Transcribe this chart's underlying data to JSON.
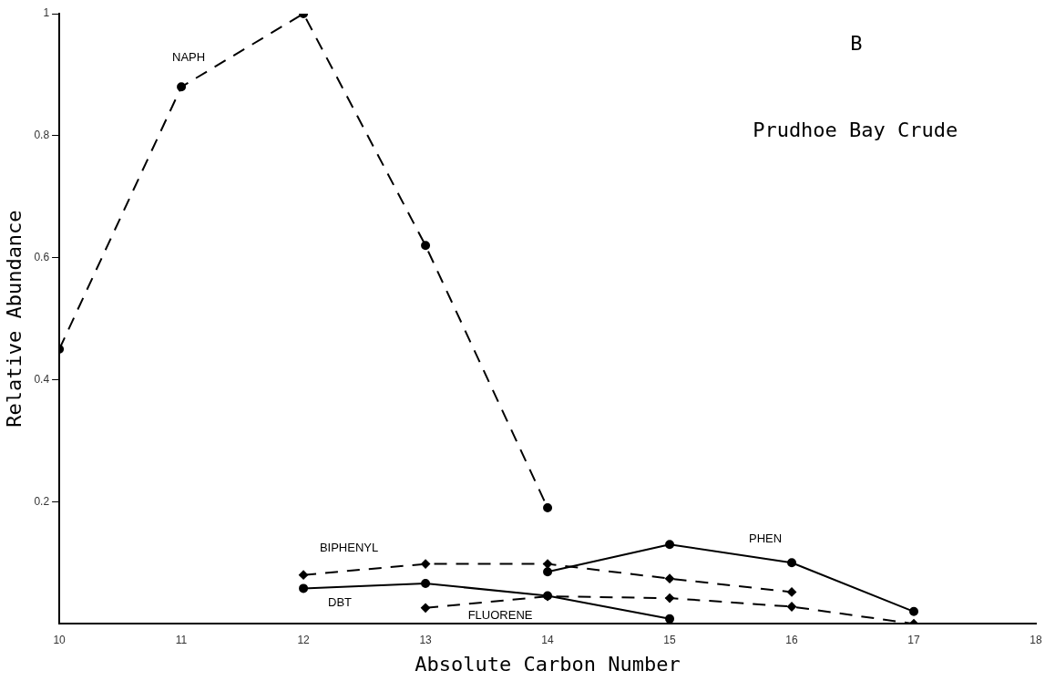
{
  "chart_data": {
    "type": "line",
    "xlabel": "Absolute Carbon Number",
    "ylabel": "Relative Abundance",
    "xlim": [
      10,
      18
    ],
    "xticks": [
      10,
      11,
      12,
      13,
      14,
      15,
      16,
      17,
      18
    ],
    "ylim": [
      0,
      1.0
    ],
    "yticks": [
      0.2,
      0.4,
      0.6,
      0.8,
      1.0
    ],
    "grid": false,
    "legend": false,
    "series": [
      {
        "name": "NAPH",
        "color": "#000000",
        "line_style": "dashed",
        "marker": "circle",
        "x": [
          10,
          11,
          12,
          13,
          14
        ],
        "values": [
          0.45,
          0.88,
          1.0,
          0.62,
          0.19
        ]
      },
      {
        "name": "BIPHENYL",
        "color": "#000000",
        "line_style": "dashed",
        "marker": "diamond",
        "x": [
          12,
          13,
          14,
          15,
          16
        ],
        "values": [
          0.08,
          0.098,
          0.098,
          0.074,
          0.052
        ]
      },
      {
        "name": "FLUORENE",
        "color": "#000000",
        "line_style": "dashed",
        "marker": "diamond",
        "x": [
          13,
          14,
          15,
          16,
          17
        ],
        "values": [
          0.026,
          0.045,
          0.042,
          0.028,
          0.0
        ]
      },
      {
        "name": "PHEN",
        "color": "#000000",
        "line_style": "solid",
        "marker": "circle",
        "x": [
          14,
          15,
          16,
          17
        ],
        "values": [
          0.085,
          0.13,
          0.1,
          0.02
        ]
      },
      {
        "name": "DBT",
        "color": "#000000",
        "line_style": "solid",
        "marker": "circle",
        "x": [
          12,
          13,
          14,
          15
        ],
        "values": [
          0.058,
          0.066,
          0.046,
          0.008
        ]
      }
    ],
    "annotations": [
      "B",
      "Prudhoe Bay Crude"
    ]
  }
}
